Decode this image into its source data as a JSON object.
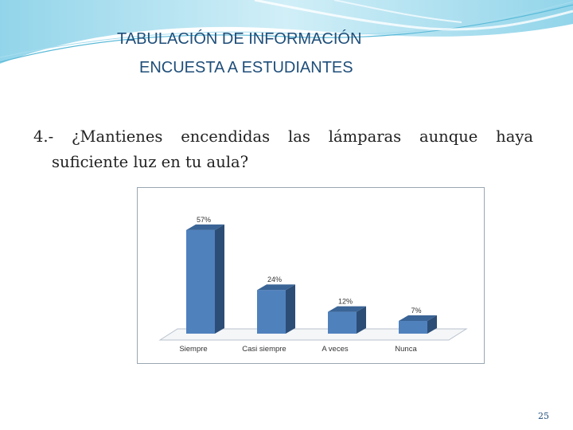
{
  "slide": {
    "title_line1": "TABULACIÓN DE INFORMACIÓN",
    "title_line2": "ENCUESTA A ESTUDIANTES",
    "question_line1": "4.- ¿Mantienes encendidas las lámparas aunque haya",
    "question_line2": "suficiente luz en tu aula?",
    "page_number": "25"
  },
  "colors": {
    "title": "#1f4e79",
    "bar_front": "#4f81bd",
    "bar_side": "#2c4d75",
    "bar_top": "#3a6496",
    "swoosh": "#8fd3ea"
  },
  "chart_data": {
    "type": "bar",
    "style": "3d-column",
    "categories": [
      "Siempre",
      "Casi siempre",
      "A veces",
      "Nunca"
    ],
    "values": [
      57,
      24,
      12,
      7
    ],
    "data_labels": [
      "57%",
      "24%",
      "12%",
      "7%"
    ],
    "unit": "%",
    "ylim": [
      0,
      60
    ],
    "grid": false,
    "legend": "none",
    "title": "",
    "xlabel": "",
    "ylabel": ""
  }
}
